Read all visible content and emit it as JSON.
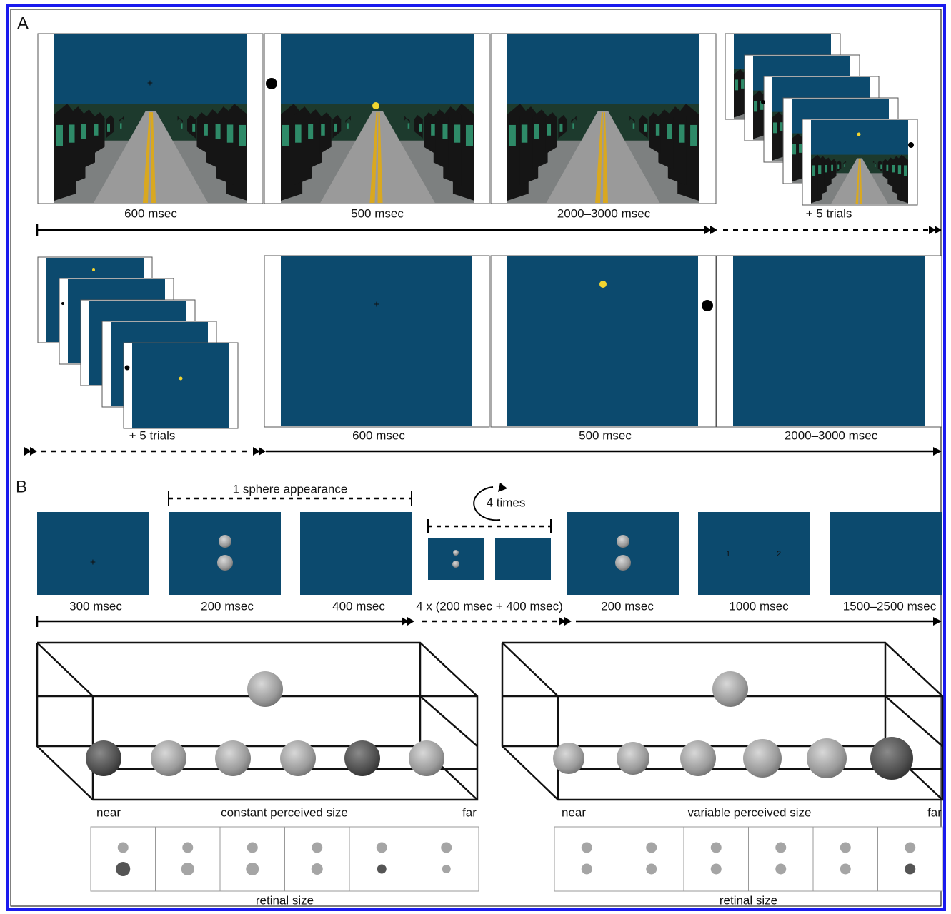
{
  "panel_a": {
    "label": "A",
    "row1": {
      "frames": [
        "600 msec",
        "500 msec",
        "2000–3000 msec"
      ],
      "stack_label": "+ 5 trials"
    },
    "row2": {
      "stack_label": "+ 5 trials",
      "frames": [
        "600 msec",
        "500 msec",
        "2000–3000 msec"
      ]
    }
  },
  "panel_b": {
    "label": "B",
    "bracket_label": "1 sphere appearance",
    "repeat_label": "4 times",
    "frames": [
      "300 msec",
      "200 msec",
      "400 msec",
      "4 x (200 msec + 400 msec)",
      "200 msec",
      "1000 msec",
      "1500–2500 msec"
    ],
    "response_options": [
      "1",
      "2"
    ],
    "left_box": {
      "near": "near",
      "caption": "constant perceived size",
      "far": "far",
      "retinal_label": "retinal size"
    },
    "right_box": {
      "near": "near",
      "caption": "variable perceived size",
      "far": "far",
      "retinal_label": "retinal size"
    }
  }
}
